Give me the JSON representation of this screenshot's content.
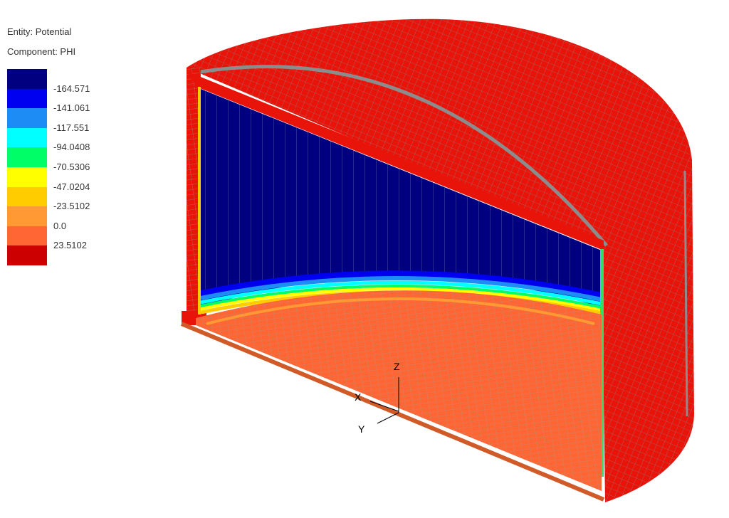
{
  "legend": {
    "entity": "Entity: Potential",
    "component": "Component: PHI",
    "colors": [
      "#000080",
      "#0000f0",
      "#1e8cf5",
      "#00ffff",
      "#00ff66",
      "#ffff00",
      "#ffcc00",
      "#ff9933",
      "#ff6633",
      "#cc0000"
    ],
    "ticks": [
      "-164.571",
      "-141.061",
      "-117.551",
      "-94.0408",
      "-70.5306",
      "-47.0204",
      "-23.5102",
      "0.0",
      "23.5102"
    ]
  },
  "axes": {
    "x": "X",
    "y": "Y",
    "z": "Z"
  },
  "colors": {
    "mesh": "#8a8a8a",
    "outer": "#e8140a",
    "floor": "#ff6633",
    "core": "#000080"
  }
}
